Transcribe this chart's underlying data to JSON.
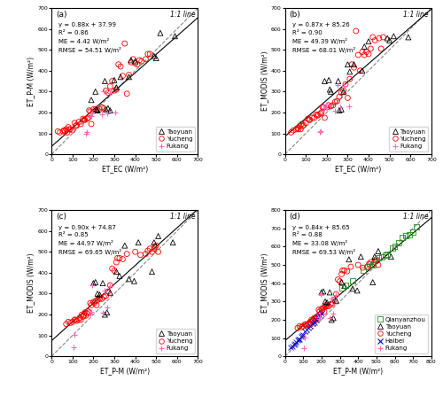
{
  "subplots": [
    {
      "label": "(a)",
      "xlabel": "ET_EC (W/m²)",
      "ylabel": "ET_P-M (W/m²)",
      "xlim": [
        0,
        700
      ],
      "ylim": [
        0,
        700
      ],
      "xticks": [
        0,
        100,
        200,
        300,
        400,
        500,
        600,
        700
      ],
      "yticks": [
        0,
        100,
        200,
        300,
        400,
        500,
        600,
        700
      ],
      "eq_text": "y = 0.88x + 37.99",
      "r2_text": "R² = 0.86",
      "me_text": "ME = 4.42 W/m²",
      "rmse_text": "RMSE = 54.51 W/m²",
      "fit_slope": 0.88,
      "fit_intercept": 37.99,
      "taoyuan_x": [
        190,
        210,
        215,
        220,
        255,
        260,
        270,
        280,
        300,
        310,
        330,
        370,
        380,
        400,
        490,
        500,
        520,
        590
      ],
      "taoyuan_y": [
        260,
        300,
        215,
        210,
        350,
        215,
        220,
        210,
        355,
        320,
        370,
        370,
        450,
        445,
        470,
        460,
        580,
        565
      ],
      "yucheng_x": [
        30,
        40,
        55,
        60,
        65,
        70,
        75,
        80,
        85,
        90,
        100,
        110,
        115,
        120,
        130,
        140,
        150,
        155,
        160,
        170,
        175,
        180,
        185,
        190,
        200,
        210,
        220,
        230,
        240,
        250,
        260,
        270,
        280,
        290,
        300,
        310,
        320,
        330,
        340,
        350,
        360,
        370,
        380,
        390,
        400,
        410,
        420,
        430,
        450,
        460,
        470
      ],
      "yucheng_y": [
        110,
        105,
        110,
        115,
        110,
        120,
        105,
        130,
        120,
        120,
        115,
        150,
        135,
        140,
        155,
        145,
        170,
        165,
        165,
        170,
        175,
        210,
        205,
        145,
        215,
        215,
        210,
        215,
        225,
        220,
        305,
        295,
        325,
        350,
        305,
        310,
        430,
        420,
        375,
        530,
        290,
        380,
        440,
        455,
        435,
        430,
        450,
        445,
        455,
        480,
        480
      ],
      "fukang_x": [
        165,
        170,
        190,
        195,
        240,
        250,
        265,
        280,
        305
      ],
      "fukang_y": [
        100,
        105,
        185,
        195,
        190,
        300,
        195,
        295,
        200
      ]
    },
    {
      "label": "(b)",
      "xlabel": "ET_EC (W/m²)",
      "ylabel": "ET_MODIS (W/m²)",
      "xlim": [
        0,
        700
      ],
      "ylim": [
        0,
        700
      ],
      "xticks": [
        0,
        100,
        200,
        300,
        400,
        500,
        600,
        700
      ],
      "yticks": [
        0,
        100,
        200,
        300,
        400,
        500,
        600,
        700
      ],
      "eq_text": "y = 0.87x + 85.26",
      "r2_text": "R² = 0.90",
      "me_text": "ME = 49.39 W/m²",
      "rmse_text": "RMSE = 68.01 W/m²",
      "fit_slope": 0.87,
      "fit_intercept": 85.26,
      "taoyuan_x": [
        190,
        210,
        215,
        220,
        255,
        260,
        270,
        280,
        300,
        310,
        330,
        370,
        380,
        400,
        490,
        500,
        520,
        590
      ],
      "taoyuan_y": [
        350,
        355,
        310,
        300,
        350,
        210,
        215,
        300,
        430,
        395,
        430,
        400,
        515,
        540,
        555,
        545,
        565,
        560
      ],
      "yucheng_x": [
        30,
        40,
        55,
        60,
        65,
        70,
        75,
        80,
        85,
        90,
        100,
        110,
        115,
        120,
        130,
        140,
        150,
        155,
        160,
        170,
        175,
        180,
        185,
        190,
        200,
        210,
        220,
        230,
        240,
        250,
        260,
        270,
        280,
        290,
        300,
        310,
        320,
        330,
        340,
        350,
        360,
        370,
        380,
        390,
        400,
        410,
        420,
        430,
        450,
        460,
        470
      ],
      "yucheng_y": [
        105,
        115,
        120,
        125,
        120,
        135,
        120,
        145,
        135,
        140,
        150,
        170,
        165,
        165,
        175,
        175,
        190,
        185,
        190,
        195,
        200,
        225,
        225,
        175,
        225,
        235,
        230,
        235,
        250,
        255,
        275,
        295,
        305,
        335,
        270,
        360,
        430,
        415,
        590,
        475,
        400,
        490,
        475,
        490,
        480,
        505,
        560,
        545,
        555,
        505,
        560
      ],
      "fukang_x": [
        165,
        170,
        190,
        195,
        240,
        250,
        265,
        280,
        305
      ],
      "fukang_y": [
        105,
        110,
        220,
        240,
        210,
        330,
        225,
        325,
        230
      ]
    },
    {
      "label": "(c)",
      "xlabel": "ET_P-M (W/m²)",
      "ylabel": "ET_MODIS (W/m²)",
      "xlim": [
        0,
        700
      ],
      "ylim": [
        0,
        700
      ],
      "xticks": [
        0,
        100,
        200,
        300,
        400,
        500,
        600,
        700
      ],
      "yticks": [
        0,
        100,
        200,
        300,
        400,
        500,
        600,
        700
      ],
      "eq_text": "y = 0.90x + 74.87",
      "r2_text": "R² = 0.85",
      "me_text": "ME = 44.97 W/m²",
      "rmse_text": "RMSE = 69.65 W/m²",
      "fit_slope": 0.9,
      "fit_intercept": 74.87,
      "taoyuan_x": [
        200,
        210,
        220,
        230,
        245,
        255,
        265,
        280,
        310,
        325,
        350,
        370,
        395,
        415,
        480,
        490,
        510,
        580
      ],
      "taoyuan_y": [
        350,
        355,
        300,
        295,
        350,
        200,
        210,
        305,
        405,
        385,
        530,
        370,
        360,
        545,
        405,
        545,
        575,
        545
      ],
      "yucheng_x": [
        70,
        80,
        90,
        100,
        110,
        115,
        120,
        130,
        135,
        140,
        145,
        150,
        155,
        160,
        165,
        170,
        175,
        180,
        185,
        190,
        200,
        205,
        210,
        215,
        220,
        225,
        230,
        240,
        250,
        260,
        270,
        280,
        290,
        300,
        310,
        315,
        325,
        340,
        360,
        400,
        425,
        450,
        460,
        470,
        480,
        490,
        495,
        500,
        510
      ],
      "yucheng_y": [
        155,
        165,
        160,
        165,
        175,
        175,
        170,
        175,
        185,
        175,
        200,
        190,
        195,
        210,
        195,
        205,
        215,
        210,
        255,
        245,
        260,
        255,
        265,
        245,
        270,
        280,
        275,
        275,
        285,
        290,
        310,
        340,
        420,
        410,
        450,
        470,
        470,
        465,
        490,
        500,
        485,
        490,
        505,
        515,
        500,
        515,
        525,
        530,
        500
      ],
      "fukang_x": [
        105,
        110,
        185,
        190,
        195,
        245,
        255,
        265,
        280
      ],
      "fukang_y": [
        45,
        105,
        205,
        215,
        340,
        210,
        315,
        235,
        335
      ]
    },
    {
      "label": "(d)",
      "xlabel": "ET_P-M (W/m²)",
      "ylabel": "ET_MODIS (W/m²)",
      "xlim": [
        0,
        800
      ],
      "ylim": [
        0,
        800
      ],
      "xticks": [
        0,
        100,
        200,
        300,
        400,
        500,
        600,
        700,
        800
      ],
      "yticks": [
        0,
        100,
        200,
        300,
        400,
        500,
        600,
        700,
        800
      ],
      "eq_text": "y = 0.84x + 85.65",
      "r2_text": "R² = 0.88",
      "me_text": "ME = 33.08 W/m²",
      "rmse_text": "RMSE = 69.53 W/m²",
      "fit_slope": 0.84,
      "fit_intercept": 85.65,
      "qianyanzhou_x": [
        310,
        330,
        370,
        430,
        450,
        460,
        480,
        510,
        530,
        550,
        560,
        590,
        600,
        620,
        640,
        660,
        680,
        700,
        720
      ],
      "qianyanzhou_y": [
        375,
        390,
        415,
        470,
        490,
        505,
        500,
        540,
        545,
        555,
        560,
        590,
        600,
        620,
        650,
        660,
        665,
        680,
        710
      ],
      "taoyuan_x": [
        200,
        210,
        220,
        230,
        245,
        255,
        265,
        280,
        310,
        325,
        350,
        370,
        395,
        415,
        480,
        490,
        510,
        580
      ],
      "taoyuan_y": [
        350,
        355,
        300,
        295,
        350,
        200,
        210,
        305,
        405,
        385,
        530,
        370,
        360,
        545,
        405,
        545,
        575,
        545
      ],
      "yucheng_x": [
        70,
        80,
        90,
        100,
        110,
        115,
        120,
        130,
        135,
        140,
        145,
        150,
        155,
        160,
        165,
        170,
        175,
        180,
        185,
        190,
        200,
        205,
        210,
        215,
        220,
        225,
        230,
        240,
        250,
        260,
        270,
        280,
        290,
        300,
        310,
        315,
        325,
        340,
        360,
        400,
        425,
        450,
        460,
        470,
        480,
        490,
        495,
        500,
        510
      ],
      "yucheng_y": [
        155,
        165,
        160,
        165,
        175,
        175,
        170,
        175,
        185,
        175,
        200,
        190,
        195,
        210,
        195,
        205,
        215,
        210,
        255,
        245,
        260,
        255,
        265,
        245,
        270,
        280,
        275,
        275,
        285,
        290,
        310,
        340,
        420,
        410,
        450,
        470,
        470,
        465,
        490,
        500,
        485,
        490,
        505,
        515,
        500,
        515,
        525,
        530,
        500
      ],
      "haibei_x": [
        30,
        40,
        50,
        55,
        60,
        70,
        75,
        80,
        90,
        95,
        100,
        110,
        120,
        130,
        140,
        150,
        160,
        170,
        180,
        190,
        200
      ],
      "haibei_y": [
        50,
        55,
        65,
        70,
        80,
        90,
        95,
        95,
        110,
        115,
        120,
        135,
        145,
        155,
        165,
        180,
        185,
        200,
        215,
        225,
        235
      ],
      "fukang_x": [
        105,
        110,
        185,
        190,
        195,
        245,
        255,
        265,
        280
      ],
      "fukang_y": [
        45,
        105,
        205,
        215,
        340,
        210,
        315,
        235,
        335
      ]
    }
  ],
  "taoyuan_color": "#000000",
  "yucheng_color": "#ff0000",
  "fukang_color": "#ff69b4",
  "qianyanzhou_color": "#228B22",
  "haibei_color": "#0000cd",
  "fit_line_color": "#000000",
  "one_one_line_color": "#888888"
}
